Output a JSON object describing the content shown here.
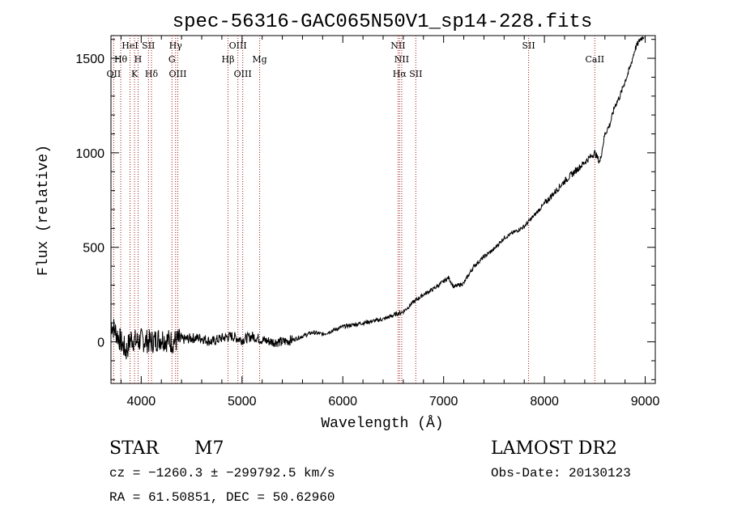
{
  "chart_data": {
    "type": "line",
    "title": "spec-56316-GAC065N50V1_sp14-228.fits",
    "xlabel": "Wavelength (Å)",
    "ylabel": "Flux (relative)",
    "xlim": [
      3700,
      9100
    ],
    "ylim": [
      -220,
      1620
    ],
    "x_ticks": [
      4000,
      5000,
      6000,
      7000,
      8000,
      9000
    ],
    "y_ticks": [
      0,
      500,
      1000,
      1500
    ],
    "grid": false,
    "legend": "none",
    "line_color": "#000000",
    "marker_color": "#a01818",
    "series": [
      {
        "x": [
          3700,
          3750,
          3800,
          3850,
          3900,
          3950,
          4000,
          4100,
          4200,
          4300,
          4400,
          4500,
          4600,
          4700,
          4800,
          4900,
          5000,
          5100,
          5200,
          5300,
          5400,
          5500,
          5600,
          5700,
          5800,
          5900,
          6000,
          6100,
          6200,
          6300,
          6400,
          6500,
          6600,
          6700,
          6800,
          6900,
          7000,
          7050,
          7100,
          7200,
          7300,
          7400,
          7500,
          7600,
          7700,
          7800,
          7900,
          8000,
          8100,
          8200,
          8300,
          8400,
          8500,
          8550,
          8600,
          8650,
          8700,
          8750,
          8800,
          8850,
          8900,
          8950,
          8990
        ],
        "y": [
          100,
          50,
          0,
          -50,
          20,
          0,
          10,
          0,
          20,
          0,
          10,
          20,
          20,
          0,
          20,
          30,
          10,
          30,
          10,
          0,
          0,
          10,
          30,
          50,
          40,
          60,
          80,
          90,
          100,
          110,
          120,
          140,
          160,
          210,
          250,
          280,
          320,
          340,
          290,
          310,
          400,
          450,
          490,
          550,
          580,
          610,
          670,
          730,
          790,
          850,
          900,
          950,
          1000,
          950,
          1100,
          1150,
          1250,
          1300,
          1380,
          1450,
          1550,
          1600,
          1620
        ]
      }
    ],
    "lines": [
      {
        "label": "OII",
        "x": 3727,
        "row": 3
      },
      {
        "label": "Hθ",
        "x": 3797,
        "row": 2
      },
      {
        "label": "HeI",
        "x": 3889,
        "row": 1
      },
      {
        "label": "K",
        "x": 3934,
        "row": 3
      },
      {
        "label": "H",
        "x": 3969,
        "row": 2
      },
      {
        "label": "SII",
        "x": 4072,
        "row": 1
      },
      {
        "label": "Hδ",
        "x": 4102,
        "row": 3
      },
      {
        "label": "Hγ",
        "x": 4341,
        "row": 1
      },
      {
        "label": "G",
        "x": 4305,
        "row": 2
      },
      {
        "label": "OIII",
        "x": 4363,
        "row": 3
      },
      {
        "label": "Hβ",
        "x": 4861,
        "row": 2
      },
      {
        "label": "OIII",
        "x": 4959,
        "row": 1
      },
      {
        "label": "OIII",
        "x": 5007,
        "row": 3
      },
      {
        "label": "Mg",
        "x": 5175,
        "row": 2
      },
      {
        "label": "NII",
        "x": 6548,
        "row": 1
      },
      {
        "label": "NII",
        "x": 6584,
        "row": 2
      },
      {
        "label": "Hα",
        "x": 6563,
        "row": 3
      },
      {
        "label": "SII",
        "x": 6724,
        "row": 3
      },
      {
        "label": "SII",
        "x": 7843,
        "row": 1
      },
      {
        "label": "CaII",
        "x": 8500,
        "row": 2
      }
    ]
  },
  "info": {
    "class_label": "STAR",
    "subclass": "M7",
    "survey": "LAMOST DR2",
    "cz": "cz = −1260.3 ± −299792.5 km/s",
    "obs_date": "Obs-Date: 20130123",
    "coords": "RA =  61.50851, DEC =  50.62960"
  }
}
